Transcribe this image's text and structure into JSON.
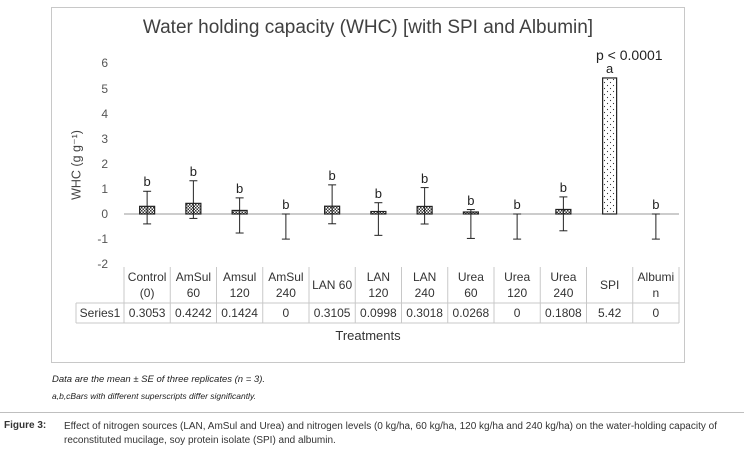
{
  "chart_data": {
    "type": "bar",
    "title": "Water holding capacity (WHC) [with SPI and Albumin]",
    "xlabel": "Treatments",
    "ylabel": "WHC (g g⁻¹)",
    "ylim": [
      -2,
      6
    ],
    "yticks": [
      "-2",
      "-1",
      "0",
      "1",
      "2",
      "3",
      "4",
      "5",
      "6"
    ],
    "grid": false,
    "categories": [
      "Control\n(0)",
      "AmSul\n60",
      "Amsul\n120",
      "AmSul\n240",
      "LAN 60",
      "LAN\n120",
      "LAN\n240",
      "Urea\n60",
      "Urea\n120",
      "Urea\n240",
      "SPI",
      "Albumi\nn"
    ],
    "series": [
      {
        "name": "Series1",
        "values": [
          0.3053,
          0.4242,
          0.1424,
          0,
          0.3105,
          0.0998,
          0.3018,
          0.0268,
          0,
          0.1808,
          5.42,
          0
        ],
        "value_labels": [
          "0.3053",
          "0.4242",
          "0.1424",
          "0",
          "0.3105",
          "0.0998",
          "0.3018",
          "0.0268",
          "0",
          "0.1808",
          "5.42",
          "0"
        ],
        "error_upper": [
          0.6,
          0.9,
          0.5,
          0,
          0.85,
          0.35,
          0.75,
          0.15,
          0,
          0.5,
          0,
          0
        ],
        "error_lower": [
          0.7,
          0.6,
          0.9,
          1.0,
          0.7,
          0.95,
          0.7,
          1.0,
          1.0,
          0.85,
          0,
          1.0
        ],
        "significance": [
          "b",
          "b",
          "b",
          "b",
          "b",
          "b",
          "b",
          "b",
          "b",
          "b",
          "a",
          "b"
        ]
      }
    ],
    "annotation": "p < 0.0001",
    "data_table": true
  },
  "notes": {
    "line1": "Data are the mean ± SE of three replicates (n = 3).",
    "line2": "a,b,cBars with different superscripts differ significantly."
  },
  "caption": {
    "label": "Figure 3:",
    "text": "Effect of nitrogen sources (LAN, AmSul and Urea) and nitrogen levels (0 kg/ha, 60 kg/ha, 120 kg/ha and 240 kg/ha) on the water-holding capacity of reconstituted mucilage, soy protein isolate (SPI) and albumin."
  }
}
